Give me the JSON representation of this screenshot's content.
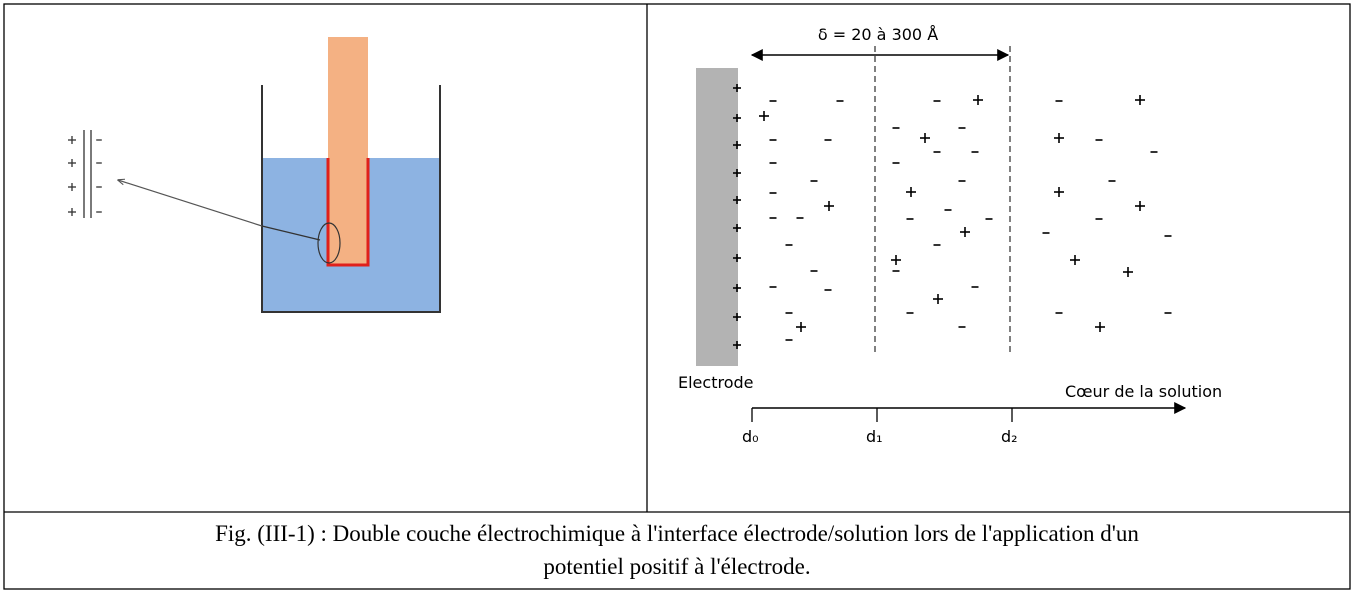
{
  "right_panel": {
    "thickness_label": "δ = 20 à 300 Å",
    "electrode_label": "Electrode",
    "bulk_label": "Cœur de la solution",
    "distance_labels": [
      "d₀",
      "d₁",
      "d₂"
    ]
  },
  "caption": {
    "line1": "Fig. (III-1) : Double couche électrochimique à l'interface électrode/solution lors de l'application d'un",
    "line2": "potentiel positif à l'électrode."
  }
}
